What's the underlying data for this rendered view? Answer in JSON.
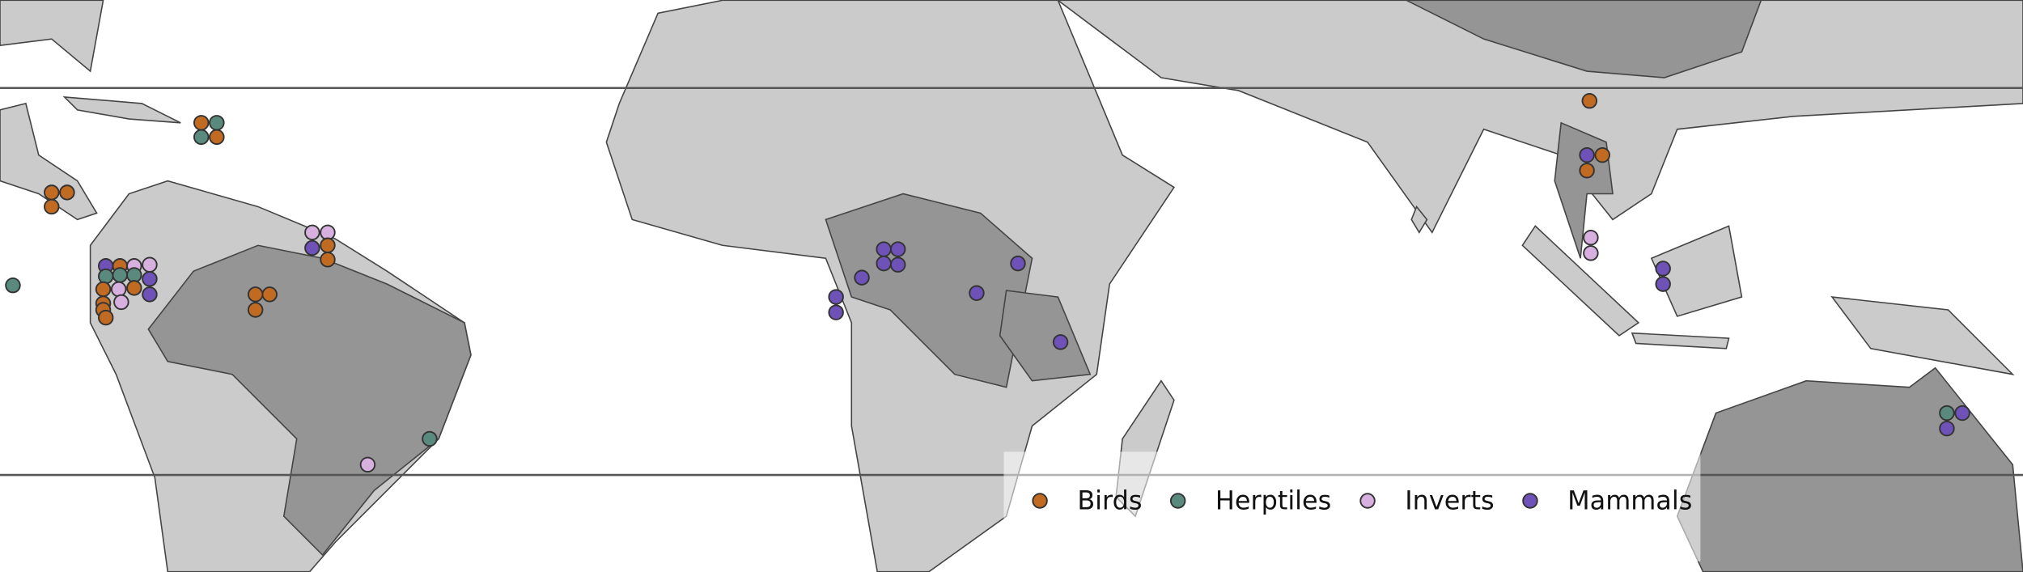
{
  "legend": {
    "items": [
      {
        "label": "Birds",
        "color": "#c06a22"
      },
      {
        "label": "Herptiles",
        "color": "#5a8a7e"
      },
      {
        "label": "Inverts",
        "color": "#d8b0e0"
      },
      {
        "label": "Mammals",
        "color": "#6e52b8"
      }
    ]
  }
}
